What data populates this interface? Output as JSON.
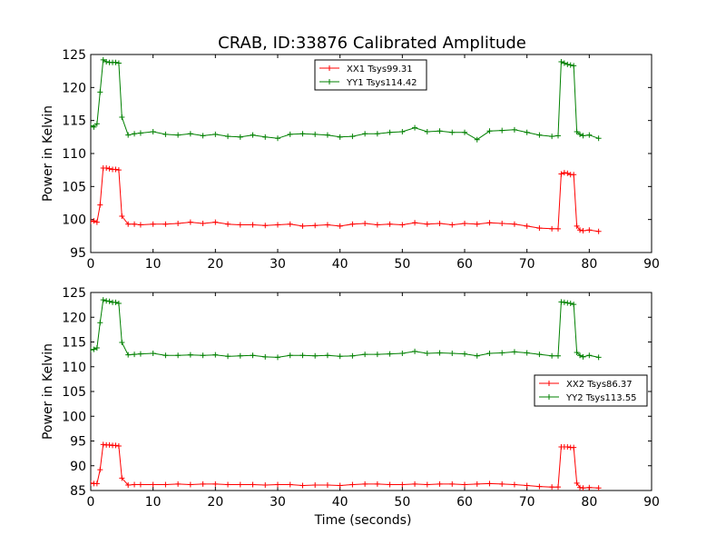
{
  "figure": {
    "title": "CRAB, ID:33876 Calibrated Amplitude"
  },
  "chart_data": [
    {
      "type": "line",
      "title": "CRAB, ID:33876 Calibrated Amplitude",
      "xlabel": "",
      "ylabel": "Power in Kelvin",
      "xlim": [
        0,
        90
      ],
      "ylim": [
        95,
        125
      ],
      "xticks": [
        0,
        10,
        20,
        30,
        40,
        50,
        60,
        70,
        80,
        90
      ],
      "yticks": [
        95,
        100,
        105,
        110,
        115,
        120,
        125
      ],
      "grid": false,
      "legend_position": "upper-center",
      "series": [
        {
          "name": "XX1 Tsys99.31",
          "color": "#ff0000",
          "marker": "+",
          "x": [
            0,
            0.5,
            1,
            1.5,
            2,
            2.5,
            3,
            3.5,
            4,
            4.5,
            5,
            6,
            7,
            8,
            10,
            12,
            14,
            16,
            18,
            20,
            22,
            24,
            26,
            28,
            30,
            32,
            34,
            36,
            38,
            40,
            42,
            44,
            46,
            48,
            50,
            52,
            54,
            56,
            58,
            60,
            62,
            64,
            66,
            68,
            70,
            72,
            74,
            75,
            75.5,
            76,
            76.5,
            77,
            77.5,
            78,
            78.5,
            79,
            80,
            81.5
          ],
          "y": [
            99.7,
            99.8,
            99.6,
            102.2,
            107.8,
            107.8,
            107.7,
            107.6,
            107.6,
            107.5,
            100.5,
            99.3,
            99.3,
            99.2,
            99.3,
            99.3,
            99.4,
            99.6,
            99.4,
            99.6,
            99.3,
            99.2,
            99.2,
            99.1,
            99.2,
            99.3,
            99.0,
            99.1,
            99.2,
            99.0,
            99.3,
            99.4,
            99.2,
            99.3,
            99.2,
            99.5,
            99.3,
            99.4,
            99.2,
            99.4,
            99.3,
            99.5,
            99.4,
            99.3,
            99.0,
            98.7,
            98.6,
            98.6,
            106.9,
            107.1,
            107.0,
            106.8,
            106.8,
            99.0,
            98.4,
            98.3,
            98.4,
            98.2
          ]
        },
        {
          "name": "YY1 Tsys114.42",
          "color": "#008000",
          "marker": "+",
          "x": [
            0,
            0.5,
            1,
            1.5,
            2,
            2.5,
            3,
            3.5,
            4,
            4.5,
            5,
            6,
            7,
            8,
            10,
            12,
            14,
            16,
            18,
            20,
            22,
            24,
            26,
            28,
            30,
            32,
            34,
            36,
            38,
            40,
            42,
            44,
            46,
            48,
            50,
            52,
            54,
            56,
            58,
            60,
            62,
            64,
            66,
            68,
            70,
            72,
            74,
            75,
            75.5,
            76,
            76.5,
            77,
            77.5,
            78,
            78.5,
            79,
            80,
            81.5
          ],
          "y": [
            114.2,
            114.0,
            114.5,
            119.3,
            124.2,
            123.9,
            123.8,
            123.8,
            123.8,
            123.7,
            115.5,
            112.8,
            113.0,
            113.1,
            113.3,
            112.9,
            112.8,
            113.0,
            112.7,
            112.9,
            112.6,
            112.5,
            112.8,
            112.5,
            112.3,
            112.9,
            113.0,
            112.9,
            112.8,
            112.5,
            112.6,
            113.0,
            113.0,
            113.2,
            113.3,
            113.9,
            113.3,
            113.4,
            113.2,
            113.2,
            112.1,
            113.4,
            113.5,
            113.6,
            113.2,
            112.8,
            112.6,
            112.7,
            123.9,
            123.7,
            123.5,
            123.4,
            123.3,
            113.3,
            112.9,
            112.7,
            112.8,
            112.3
          ]
        }
      ]
    },
    {
      "type": "line",
      "title": "",
      "xlabel": "Time (seconds)",
      "ylabel": "Power in Kelvin",
      "xlim": [
        0,
        90
      ],
      "ylim": [
        85,
        125
      ],
      "xticks": [
        0,
        10,
        20,
        30,
        40,
        50,
        60,
        70,
        80,
        90
      ],
      "yticks": [
        85,
        90,
        95,
        100,
        105,
        110,
        115,
        120,
        125
      ],
      "grid": false,
      "legend_position": "center-right",
      "series": [
        {
          "name": "XX2 Tsys86.37",
          "color": "#ff0000",
          "marker": "+",
          "x": [
            0,
            0.5,
            1,
            1.5,
            2,
            2.5,
            3,
            3.5,
            4,
            4.5,
            5,
            6,
            7,
            8,
            10,
            12,
            14,
            16,
            18,
            20,
            22,
            24,
            26,
            28,
            30,
            32,
            34,
            36,
            38,
            40,
            42,
            44,
            46,
            48,
            50,
            52,
            54,
            56,
            58,
            60,
            62,
            64,
            66,
            68,
            70,
            72,
            74,
            75,
            75.5,
            76,
            76.5,
            77,
            77.5,
            78,
            78.5,
            79,
            80,
            81.5
          ],
          "y": [
            86.5,
            86.4,
            86.4,
            89.2,
            94.3,
            94.2,
            94.2,
            94.1,
            94.1,
            94.0,
            87.5,
            86.1,
            86.2,
            86.2,
            86.2,
            86.2,
            86.3,
            86.2,
            86.3,
            86.3,
            86.2,
            86.2,
            86.2,
            86.1,
            86.2,
            86.2,
            86.0,
            86.1,
            86.1,
            86.0,
            86.2,
            86.3,
            86.3,
            86.2,
            86.2,
            86.3,
            86.2,
            86.3,
            86.3,
            86.2,
            86.3,
            86.4,
            86.3,
            86.2,
            86.0,
            85.8,
            85.7,
            85.7,
            93.8,
            93.8,
            93.8,
            93.7,
            93.7,
            86.5,
            85.6,
            85.5,
            85.6,
            85.5
          ]
        },
        {
          "name": "YY2 Tsys113.55",
          "color": "#008000",
          "marker": "+",
          "x": [
            0,
            0.5,
            1,
            1.5,
            2,
            2.5,
            3,
            3.5,
            4,
            4.5,
            5,
            6,
            7,
            8,
            10,
            12,
            14,
            16,
            18,
            20,
            22,
            24,
            26,
            28,
            30,
            32,
            34,
            36,
            38,
            40,
            42,
            44,
            46,
            48,
            50,
            52,
            54,
            56,
            58,
            60,
            62,
            64,
            66,
            68,
            70,
            72,
            74,
            75,
            75.5,
            76,
            76.5,
            77,
            77.5,
            78,
            78.5,
            79,
            80,
            81.5
          ],
          "y": [
            113.4,
            113.5,
            113.8,
            118.9,
            123.5,
            123.3,
            123.2,
            123.0,
            123.0,
            122.8,
            114.9,
            112.4,
            112.5,
            112.6,
            112.7,
            112.3,
            112.3,
            112.4,
            112.3,
            112.4,
            112.1,
            112.2,
            112.3,
            112.0,
            111.9,
            112.3,
            112.3,
            112.2,
            112.3,
            112.1,
            112.2,
            112.5,
            112.5,
            112.6,
            112.7,
            113.1,
            112.7,
            112.8,
            112.7,
            112.6,
            112.2,
            112.7,
            112.8,
            113.0,
            112.8,
            112.5,
            112.2,
            112.2,
            123.1,
            123.0,
            122.9,
            122.8,
            122.6,
            112.9,
            112.3,
            112.0,
            112.3,
            111.9
          ]
        }
      ]
    }
  ]
}
